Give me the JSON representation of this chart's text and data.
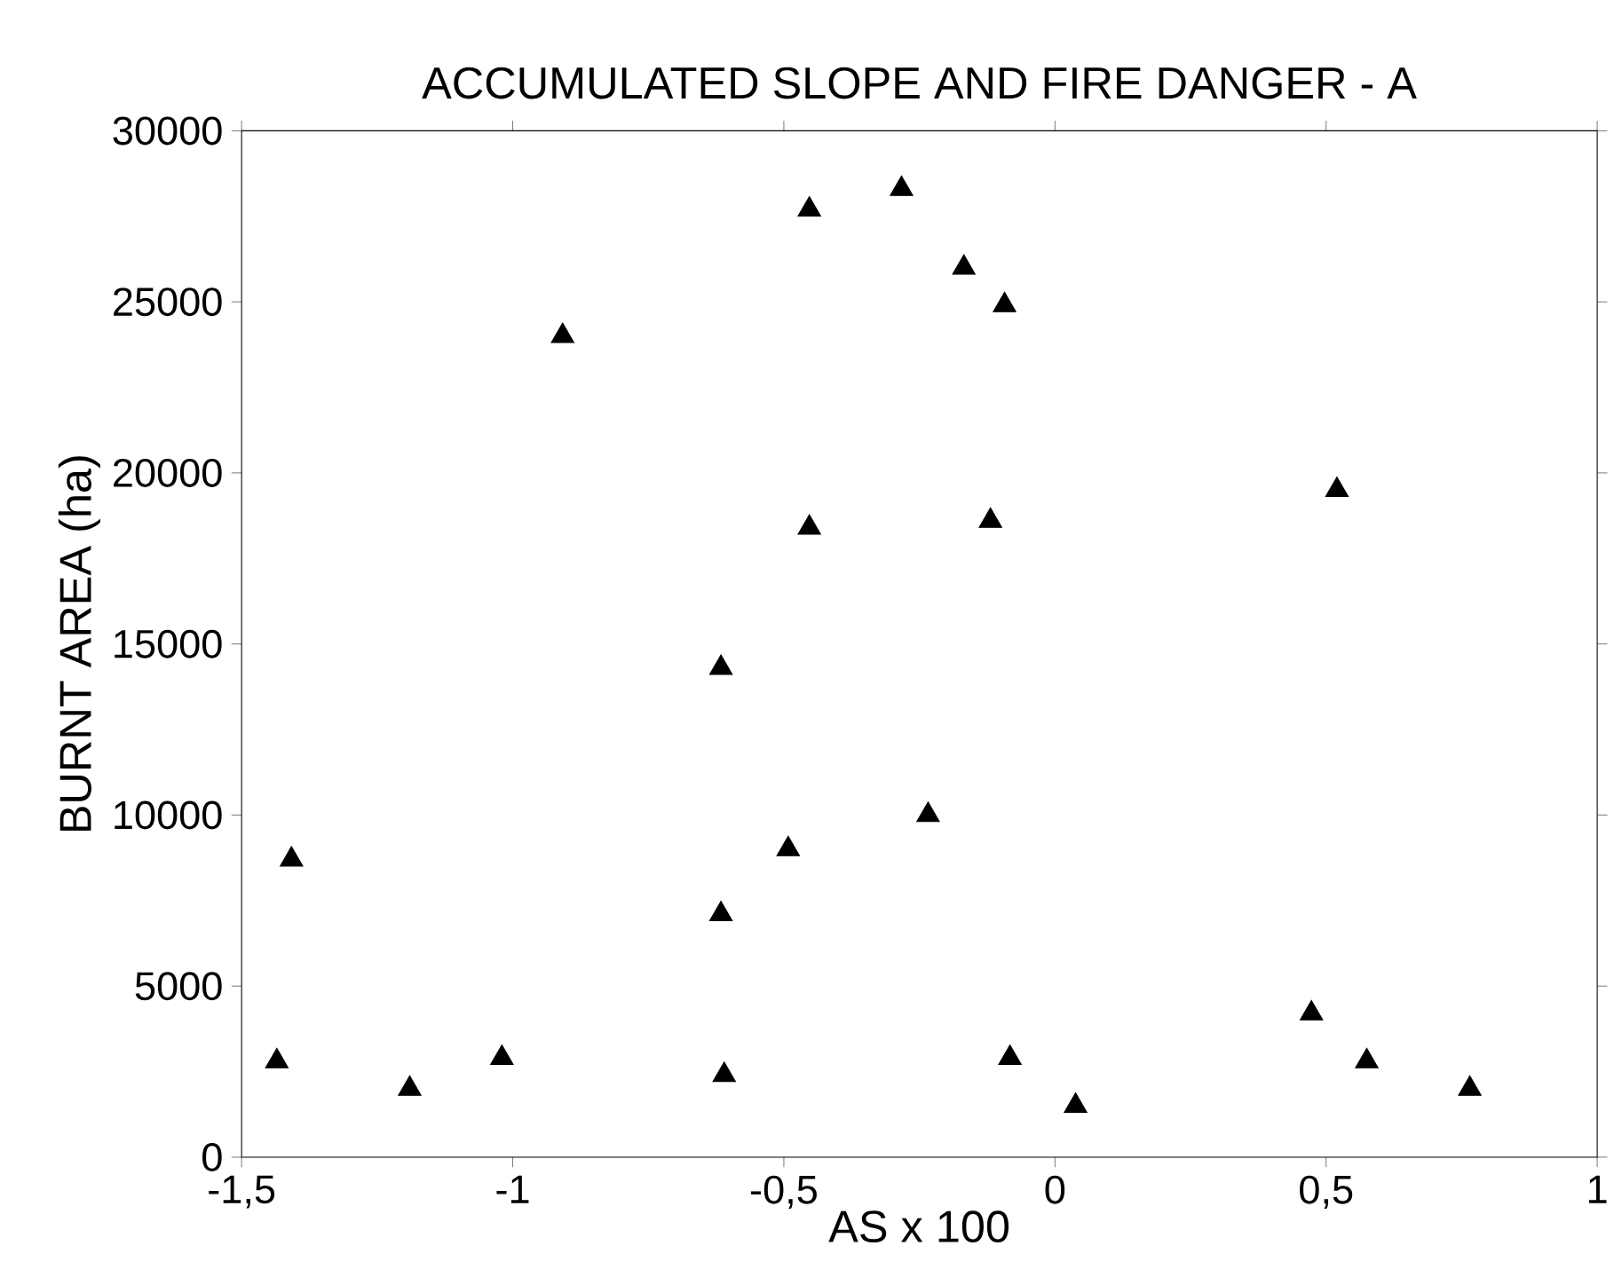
{
  "chart_data": {
    "type": "scatter",
    "title": "ACCUMULATED SLOPE AND FIRE DANGER - A",
    "xlabel": "AS x 100",
    "ylabel": "BURNT AREA (ha)",
    "x": [
      -1.435,
      -1.19,
      -1.02,
      -0.61,
      -0.083,
      0.038,
      0.473,
      0.575,
      0.765,
      -1.408,
      -0.908,
      -0.616,
      -0.616,
      -0.492,
      -0.453,
      -0.453,
      -0.234,
      -0.283,
      -0.168,
      -0.119,
      -0.093,
      0.52
    ],
    "values": [
      2800,
      2000,
      2900,
      2400,
      2900,
      1500,
      4200,
      2800,
      2000,
      8700,
      24000,
      7100,
      14300,
      9000,
      18400,
      27700,
      10000,
      28300,
      26000,
      18600,
      24900,
      19500
    ],
    "color": "#000000",
    "marker": "triangle",
    "xlim": [
      -1.5,
      1
    ],
    "ylim": [
      0,
      30000
    ],
    "xticks": [
      {
        "value": -1.5,
        "label": "-1,5"
      },
      -1,
      {
        "value": -0.5,
        "label": "-0,5"
      },
      0,
      {
        "value": 0.5,
        "label": "0,5"
      },
      1
    ],
    "yticks": [
      0,
      5000,
      10000,
      15000,
      20000,
      25000,
      30000
    ]
  }
}
